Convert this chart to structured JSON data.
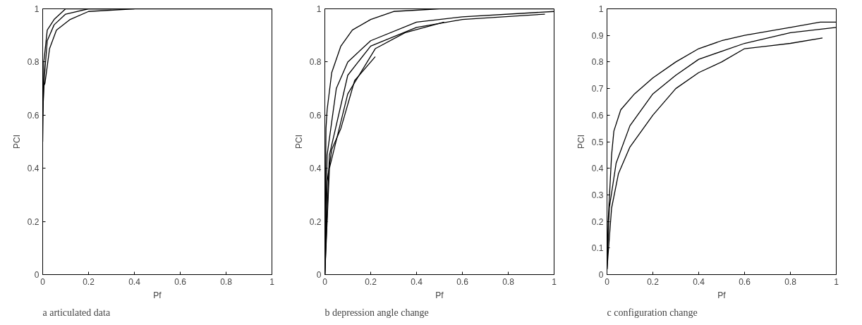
{
  "chart_data": [
    {
      "type": "line",
      "xlabel": "Pf",
      "ylabel": "PCI",
      "annotations": [
        "a articulated data"
      ],
      "xlim": [
        0,
        1
      ],
      "ylim": [
        0,
        1
      ],
      "xticks": [
        0,
        0.2,
        0.4,
        0.6,
        0.8,
        1
      ],
      "yticks": [
        0,
        0.2,
        0.4,
        0.6,
        0.8,
        1
      ],
      "grid": false,
      "line_style": "solid",
      "series": [
        {
          "color": "#000000",
          "x": [
            0,
            0.005,
            0.02,
            0.05,
            0.1,
            0.2,
            1
          ],
          "values": [
            0.5,
            0.8,
            0.92,
            0.96,
            1,
            1,
            1
          ]
        },
        {
          "color": "#000000",
          "x": [
            0,
            0.008,
            0.02,
            0.05,
            0.1,
            0.2,
            0.3
          ],
          "values": [
            0.6,
            0.75,
            0.88,
            0.94,
            0.98,
            1,
            1
          ]
        },
        {
          "color": "#000000",
          "x": [
            0,
            0.01,
            0.03,
            0.06,
            0.12,
            0.2,
            0.4
          ],
          "values": [
            0.7,
            0.72,
            0.85,
            0.92,
            0.96,
            0.99,
            1
          ]
        }
      ]
    },
    {
      "type": "line",
      "xlabel": "Pf",
      "ylabel": "PCI",
      "annotations": [
        "b depression angle change"
      ],
      "xlim": [
        0,
        1
      ],
      "ylim": [
        0,
        1
      ],
      "xticks": [
        0,
        0.2,
        0.4,
        0.6,
        0.8,
        1
      ],
      "yticks": [
        0,
        0.2,
        0.4,
        0.6,
        0.8,
        1
      ],
      "grid": false,
      "line_style": "solid",
      "series": [
        {
          "color": "#000000",
          "x": [
            0,
            0.005,
            0.01,
            0.03,
            0.07,
            0.12,
            0.2,
            0.3,
            0.5,
            1
          ],
          "values": [
            0,
            0.55,
            0.62,
            0.76,
            0.86,
            0.92,
            0.96,
            0.99,
            1,
            1
          ]
        },
        {
          "color": "#000000",
          "x": [
            0,
            0.01,
            0.05,
            0.1,
            0.2,
            0.4,
            0.6,
            1
          ],
          "values": [
            0,
            0.45,
            0.7,
            0.8,
            0.88,
            0.95,
            0.97,
            0.99
          ]
        },
        {
          "color": "#000000",
          "x": [
            0,
            0.02,
            0.1,
            0.2,
            0.4,
            0.6,
            0.96
          ],
          "values": [
            0,
            0.45,
            0.75,
            0.86,
            0.93,
            0.96,
            0.98
          ]
        },
        {
          "color": "#000000",
          "x": [
            0,
            0.02,
            0.1,
            0.22,
            0.35,
            0.52
          ],
          "values": [
            0,
            0.4,
            0.68,
            0.85,
            0.91,
            0.95
          ]
        },
        {
          "color": "#000000",
          "x": [
            0,
            0.01,
            0.03,
            0.07,
            0.13,
            0.22
          ],
          "values": [
            0,
            0.35,
            0.47,
            0.55,
            0.73,
            0.82
          ]
        }
      ]
    },
    {
      "type": "line",
      "xlabel": "Pf",
      "ylabel": "PCI",
      "annotations": [
        "c configuration change"
      ],
      "xlim": [
        0,
        1
      ],
      "ylim": [
        0,
        1
      ],
      "xticks": [
        0,
        0.2,
        0.4,
        0.6,
        0.8,
        1
      ],
      "yticks": [
        0,
        0.1,
        0.2,
        0.3,
        0.4,
        0.5,
        0.6,
        0.7,
        0.8,
        0.9,
        1
      ],
      "grid": false,
      "line_style": "solid",
      "series": [
        {
          "color": "#000000",
          "x": [
            0,
            0.005,
            0.02,
            0.03,
            0.06,
            0.12,
            0.2,
            0.3,
            0.4,
            0.5,
            0.6,
            0.8,
            0.93,
            1
          ],
          "values": [
            0.02,
            0.2,
            0.45,
            0.54,
            0.62,
            0.68,
            0.74,
            0.8,
            0.85,
            0.88,
            0.9,
            0.93,
            0.95,
            0.95
          ]
        },
        {
          "color": "#000000",
          "x": [
            0,
            0.01,
            0.04,
            0.1,
            0.2,
            0.3,
            0.4,
            0.6,
            0.8,
            1
          ],
          "values": [
            0.02,
            0.25,
            0.42,
            0.56,
            0.68,
            0.75,
            0.81,
            0.87,
            0.91,
            0.93
          ]
        },
        {
          "color": "#000000",
          "x": [
            0,
            0.02,
            0.05,
            0.1,
            0.2,
            0.3,
            0.4,
            0.5,
            0.6,
            0.7,
            0.8,
            0.94
          ],
          "values": [
            0.02,
            0.25,
            0.38,
            0.48,
            0.6,
            0.7,
            0.76,
            0.8,
            0.85,
            0.86,
            0.87,
            0.89
          ]
        }
      ]
    }
  ]
}
